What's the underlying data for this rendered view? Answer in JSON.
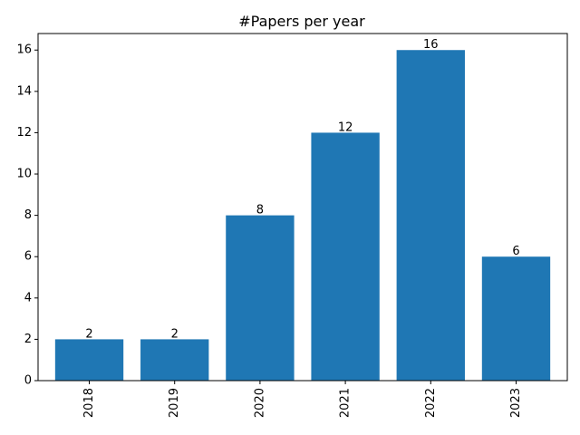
{
  "chart_data": {
    "type": "bar",
    "title": "#Papers per year",
    "xlabel": "",
    "ylabel": "",
    "categories": [
      "2018",
      "2019",
      "2020",
      "2021",
      "2022",
      "2023"
    ],
    "values": [
      2,
      2,
      8,
      12,
      16,
      6
    ],
    "data_labels": [
      "2",
      "2",
      "8",
      "12",
      "16",
      "6"
    ],
    "ylim": [
      0,
      16.8
    ],
    "yticks": [
      0,
      2,
      4,
      6,
      8,
      10,
      12,
      14,
      16
    ],
    "ytick_labels": [
      "0",
      "2",
      "4",
      "6",
      "8",
      "10",
      "12",
      "14",
      "16"
    ],
    "xtick_rotation": "vertical",
    "bar_color": "#1f77b4",
    "grid": false,
    "legend": "none"
  }
}
